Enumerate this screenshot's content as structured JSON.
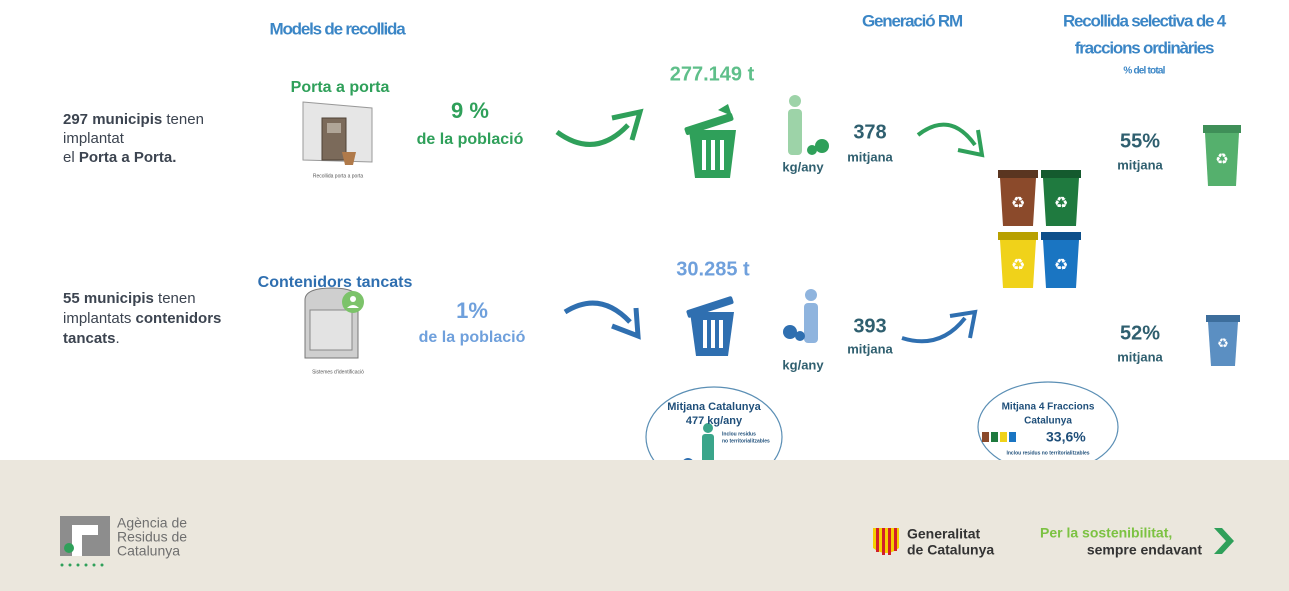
{
  "header": {
    "models": "Models de recollida",
    "generation": "Generació RM",
    "selective": [
      "Recollida selectiva de 4",
      "fraccions ordinàries"
    ],
    "selective_unit": "% del total"
  },
  "rows": [
    {
      "description": [
        [
          {
            "text": "297 municipis",
            "bold": true
          },
          {
            "text": " tenen"
          }
        ],
        [
          {
            "text": "implantat"
          }
        ],
        [
          {
            "text": "el "
          },
          {
            "text": "Porta a Porta.",
            "bold": true
          }
        ]
      ],
      "model": "Porta a porta",
      "image_caption": "Recollida porta a porta",
      "population_share": "9 %",
      "population_label": "de la població",
      "tonnes": "277.149 t",
      "per_capita_unit": "kg/any",
      "per_capita": "378",
      "per_capita_label": "mitjana",
      "selective_share": "55%",
      "selective_label": "mitjana"
    },
    {
      "description": [
        [
          {
            "text": "55 municipis",
            "bold": true
          },
          {
            "text": " tenen"
          }
        ],
        [
          {
            "text": "implantats "
          },
          {
            "text": "contenidors",
            "bold": true
          }
        ],
        [
          {
            "text": "tancats",
            "bold": true
          },
          {
            "text": "."
          }
        ]
      ],
      "model": "Contenidors tancats",
      "image_caption": "Sistemes d'identificació",
      "population_share": "1%",
      "population_label": "de la població",
      "tonnes": "30.285 t",
      "per_capita_unit": "kg/any",
      "per_capita": "393",
      "per_capita_label": "mitjana",
      "selective_share": "52%",
      "selective_label": "mitjana"
    }
  ],
  "averages": [
    {
      "lines": [
        "Mitjana Catalunya",
        "477 kg/any"
      ],
      "note": [
        "Inclou residus",
        "no territorialitzables"
      ]
    },
    {
      "lines": [
        "Mitjana 4 Fraccions",
        "Catalunya",
        "33,6%"
      ],
      "note": [
        "Inclou residus no territorialitzables"
      ]
    }
  ],
  "footer": {
    "agency": [
      "Agència de",
      "Residus de",
      "Catalunya"
    ],
    "government": [
      "Generalitat",
      "de Catalunya"
    ],
    "slogan": [
      "Per la sostenibilitat,",
      "sempre endavant"
    ]
  }
}
